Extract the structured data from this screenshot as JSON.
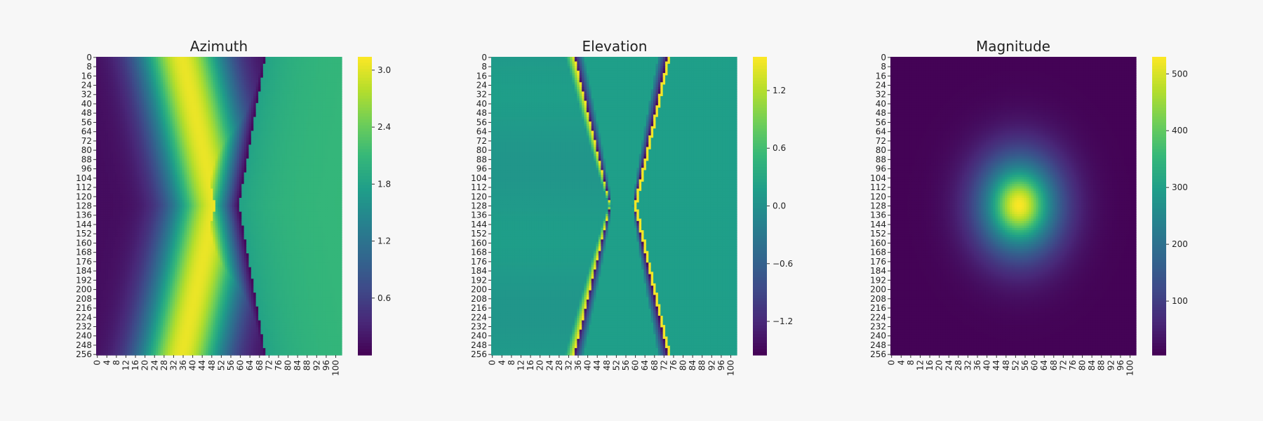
{
  "chart_data": [
    {
      "type": "heatmap",
      "title": "Azimuth",
      "colormap": "viridis",
      "grid": false,
      "pattern": "azimuth",
      "rows": 257,
      "cols": 103,
      "x_ticks": [
        "0",
        "4",
        "8",
        "12",
        "16",
        "20",
        "24",
        "28",
        "32",
        "36",
        "40",
        "44",
        "48",
        "52",
        "56",
        "60",
        "64",
        "68",
        "72",
        "76",
        "80",
        "84",
        "88",
        "92",
        "96",
        "100"
      ],
      "y_ticks": [
        "0",
        "8",
        "16",
        "24",
        "32",
        "40",
        "48",
        "56",
        "64",
        "72",
        "80",
        "88",
        "96",
        "104",
        "112",
        "120",
        "128",
        "136",
        "144",
        "152",
        "160",
        "168",
        "176",
        "184",
        "192",
        "200",
        "208",
        "216",
        "224",
        "232",
        "240",
        "248",
        "256"
      ],
      "vmin": 0.0,
      "vmax": 3.14,
      "colorbar_ticks": [
        {
          "value": 0.6,
          "label": "0.6"
        },
        {
          "value": 1.2,
          "label": "1.2"
        },
        {
          "value": 1.8,
          "label": "1.8"
        },
        {
          "value": 2.4,
          "label": "2.4"
        },
        {
          "value": 3.0,
          "label": "3.0"
        }
      ]
    },
    {
      "type": "heatmap",
      "title": "Elevation",
      "colormap": "viridis",
      "grid": false,
      "pattern": "elevation",
      "rows": 257,
      "cols": 103,
      "x_ticks": [
        "0",
        "4",
        "8",
        "12",
        "16",
        "20",
        "24",
        "28",
        "32",
        "36",
        "40",
        "44",
        "48",
        "52",
        "56",
        "60",
        "64",
        "68",
        "72",
        "76",
        "80",
        "84",
        "88",
        "92",
        "96",
        "100"
      ],
      "y_ticks": [
        "0",
        "8",
        "16",
        "24",
        "32",
        "40",
        "48",
        "56",
        "64",
        "72",
        "80",
        "88",
        "96",
        "104",
        "112",
        "120",
        "128",
        "136",
        "144",
        "152",
        "160",
        "168",
        "176",
        "184",
        "192",
        "200",
        "208",
        "216",
        "224",
        "232",
        "240",
        "248",
        "256"
      ],
      "vmin": -1.55,
      "vmax": 1.55,
      "colorbar_ticks": [
        {
          "value": -1.2,
          "label": "−1.2"
        },
        {
          "value": -0.6,
          "label": "−0.6"
        },
        {
          "value": 0.0,
          "label": "0.0"
        },
        {
          "value": 0.6,
          "label": "0.6"
        },
        {
          "value": 1.2,
          "label": "1.2"
        }
      ]
    },
    {
      "type": "heatmap",
      "title": "Magnitude",
      "colormap": "viridis",
      "grid": false,
      "pattern": "magnitude",
      "rows": 257,
      "cols": 103,
      "x_ticks": [
        "0",
        "4",
        "8",
        "12",
        "16",
        "20",
        "24",
        "28",
        "32",
        "36",
        "40",
        "44",
        "48",
        "52",
        "56",
        "60",
        "64",
        "68",
        "72",
        "76",
        "80",
        "84",
        "88",
        "92",
        "96",
        "100"
      ],
      "y_ticks": [
        "0",
        "8",
        "16",
        "24",
        "32",
        "40",
        "48",
        "56",
        "64",
        "72",
        "80",
        "88",
        "96",
        "104",
        "112",
        "120",
        "128",
        "136",
        "144",
        "152",
        "160",
        "168",
        "176",
        "184",
        "192",
        "200",
        "208",
        "216",
        "224",
        "232",
        "240",
        "248",
        "256"
      ],
      "vmin": 5,
      "vmax": 530,
      "colorbar_ticks": [
        {
          "value": 100,
          "label": "100"
        },
        {
          "value": 200,
          "label": "200"
        },
        {
          "value": 300,
          "label": "300"
        },
        {
          "value": 400,
          "label": "400"
        },
        {
          "value": 500,
          "label": "500"
        }
      ]
    }
  ]
}
